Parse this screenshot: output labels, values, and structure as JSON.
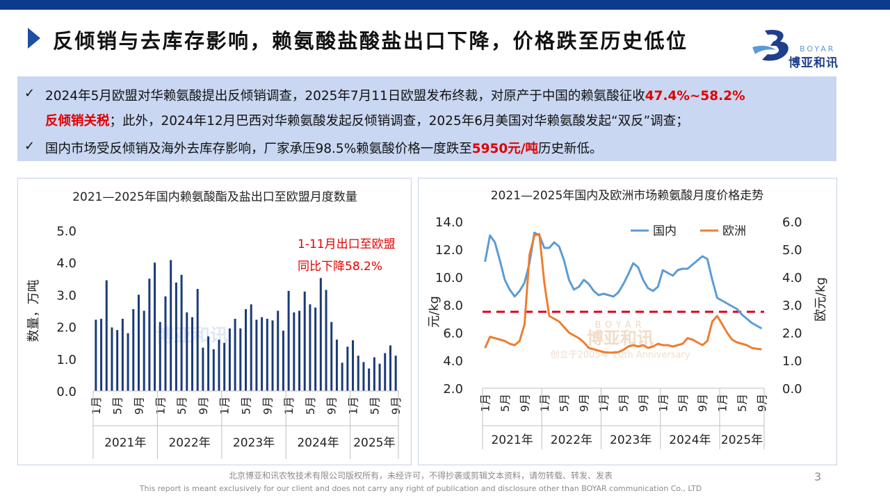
{
  "header": {
    "title": "反倾销与去库存影响，赖氨酸盐酸盐出口下降，价格跌至历史低位",
    "logo_en": "BOYAR",
    "logo_cn": "博亚和讯"
  },
  "summary": {
    "b1_part1": "2024年5月欧盟对华赖氨酸提出反倾销调查，2025年7月11日欧盟发布终裁，对原产于中国的赖氨酸征收",
    "b1_highlight1": "47.4%~58.2%",
    "b1_highlight2": "反倾销关税",
    "b1_part2": "；此外，2024年12月巴西对华赖氨酸发起反倾销调查，2025年6月美国对华赖氨酸发起“双反”调查；",
    "b2_part1": "国内市场受反倾销及海外去库存影响，厂家承压98.5%赖氨酸价格一度跌至",
    "b2_highlight": "5950元/吨",
    "b2_part2": "历史新低。",
    "check_symbol": "✓"
  },
  "chart_data": [
    {
      "type": "bar",
      "title": "2021—2025年国内赖氨酸酯及盐出口至欧盟月度数量",
      "ylabel": "数量，万吨",
      "ylim": [
        0,
        5
      ],
      "yticks": [
        "0.0",
        "1.0",
        "2.0",
        "3.0",
        "4.0",
        "5.0"
      ],
      "month_labels": [
        "1月",
        "5月",
        "9月"
      ],
      "years": [
        "2021年",
        "2022年",
        "2023年",
        "2024年",
        "2025年"
      ],
      "values": [
        2.22,
        2.25,
        3.45,
        1.98,
        1.9,
        2.25,
        1.8,
        2.55,
        3.0,
        2.5,
        3.5,
        4.0,
        2.15,
        2.95,
        4.08,
        3.38,
        3.62,
        2.45,
        2.3,
        3.18,
        1.35,
        1.7,
        1.3,
        1.6,
        1.5,
        1.95,
        2.25,
        1.95,
        2.55,
        2.7,
        2.22,
        2.3,
        2.25,
        2.2,
        2.5,
        1.88,
        3.12,
        2.45,
        2.5,
        3.1,
        2.7,
        2.6,
        3.52,
        3.15,
        2.15,
        1.6,
        0.88,
        1.38,
        1.58,
        1.1,
        0.9,
        0.7,
        1.05,
        0.85,
        1.18,
        1.42,
        1.1
      ],
      "annotation_line1": "1-11月出口至欧盟",
      "annotation_line2": "同比下降58.2%",
      "bar_color": "#1a3a7a"
    },
    {
      "type": "line",
      "title": "2021—2025年国内及欧洲市场赖氨酸月度价格走势",
      "ylabel_left": "元/kg",
      "ylabel_right": "欧元/kg",
      "ylim_left": [
        2,
        14
      ],
      "ylim_right": [
        0,
        6
      ],
      "yticks_left": [
        "2.0",
        "4.0",
        "6.0",
        "8.0",
        "10.0",
        "12.0",
        "14.0"
      ],
      "yticks_right": [
        "0.0",
        "1.0",
        "2.0",
        "3.0",
        "4.0",
        "5.0",
        "6.0"
      ],
      "month_labels": [
        "1月",
        "5月",
        "9月"
      ],
      "years": [
        "2021年",
        "2022年",
        "2023年",
        "2024年",
        "2025年"
      ],
      "reference_line": 7.5,
      "series": [
        {
          "name": "国内",
          "color": "#5b9bd5",
          "values": [
            11.1,
            13.0,
            12.5,
            11.2,
            9.8,
            9.1,
            8.6,
            9.0,
            9.6,
            11.0,
            13.2,
            13.0,
            12.1,
            12.1,
            12.5,
            12.2,
            11.2,
            9.8,
            9.1,
            9.3,
            9.8,
            9.5,
            9.0,
            8.7,
            8.8,
            8.7,
            8.6,
            8.9,
            9.5,
            10.2,
            11.0,
            10.7,
            9.8,
            9.2,
            9.0,
            9.3,
            10.5,
            10.3,
            10.1,
            10.5,
            10.6,
            10.6,
            10.9,
            11.2,
            11.5,
            11.3,
            9.8,
            8.5,
            8.3,
            8.1,
            7.9,
            7.7,
            7.3,
            7.0,
            6.7,
            6.5,
            6.3
          ]
        },
        {
          "name": "欧洲",
          "color": "#ed7d31",
          "values": [
            1.45,
            1.85,
            1.8,
            1.75,
            1.7,
            1.6,
            1.55,
            1.7,
            2.3,
            4.8,
            5.5,
            5.55,
            3.8,
            2.6,
            2.5,
            2.4,
            2.2,
            2.0,
            1.9,
            1.8,
            1.65,
            1.45,
            1.4,
            1.35,
            1.3,
            1.28,
            1.28,
            1.3,
            1.38,
            1.5,
            1.55,
            1.5,
            1.55,
            1.45,
            1.5,
            1.6,
            1.55,
            1.55,
            1.5,
            1.55,
            1.6,
            1.8,
            1.75,
            1.65,
            1.55,
            1.7,
            2.4,
            2.6,
            2.3,
            2.0,
            1.75,
            1.65,
            1.6,
            1.55,
            1.45,
            1.42,
            1.4
          ]
        }
      ],
      "watermark_cn": "博亚和讯",
      "watermark_sub": "创立于2005年 20th Anniversary"
    }
  ],
  "footer": {
    "copyright_cn": "北京博亚和讯农牧技术有限公司版权所有，未经许可，不得抄袭或剪辑文本资料，请勿转载、转发、发表",
    "copyright_en": "This report is meant exclusively for our client and does not carry any right of publication and disclosure other than BOYAR communication Co., LTD",
    "page_number": "3"
  }
}
